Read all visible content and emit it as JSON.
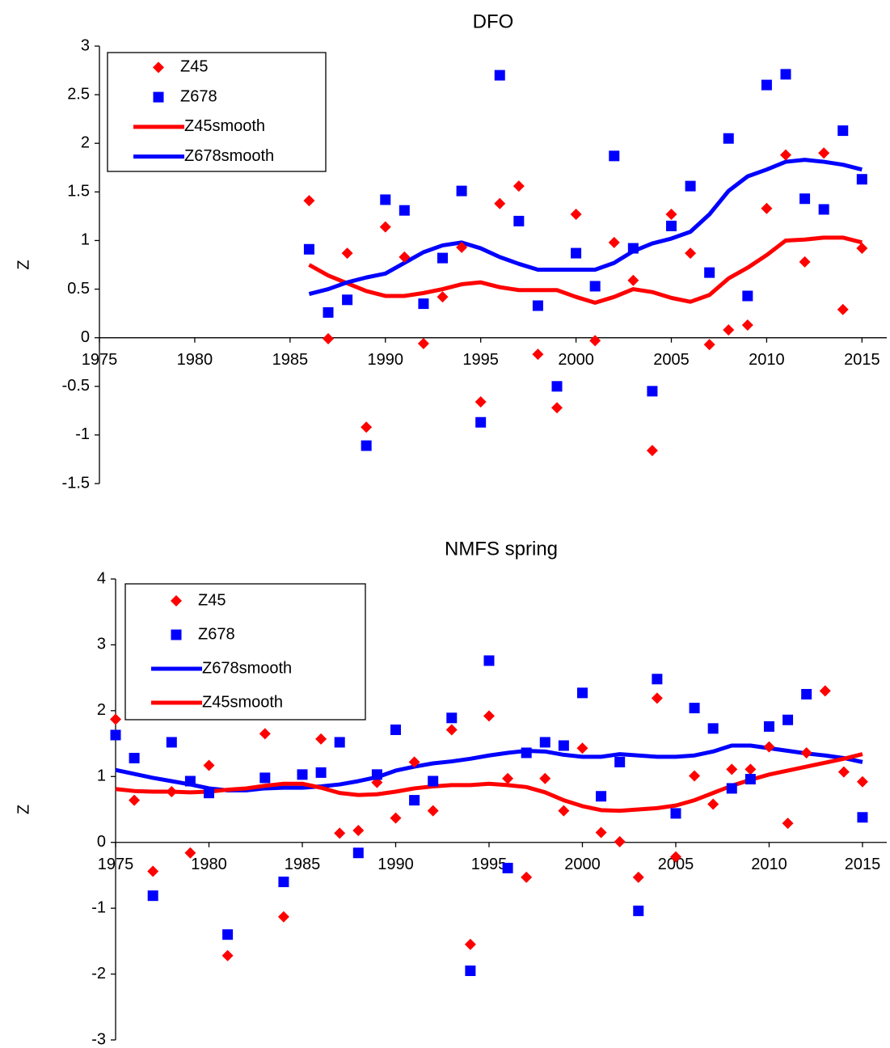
{
  "chart_data": [
    {
      "type": "scatter",
      "title": "DFO",
      "y_label": "Z",
      "legend": "upper left",
      "grid": false,
      "xlim": [
        1975,
        2016.3
      ],
      "xticks": [
        1975,
        1980,
        1985,
        1990,
        1995,
        2000,
        2005,
        2010,
        2015
      ],
      "ylim": [
        -1.5,
        3
      ],
      "yticks": [
        -1.5,
        -1,
        -0.5,
        0,
        0.5,
        1,
        1.5,
        2,
        2.5,
        3
      ],
      "x": [
        1986,
        1987,
        1988,
        1989,
        1990,
        1991,
        1992,
        1993,
        1994,
        1995,
        1996,
        1997,
        1998,
        1999,
        2000,
        2001,
        2002,
        2003,
        2004,
        2005,
        2006,
        2007,
        2008,
        2009,
        2010,
        2011,
        2012,
        2013,
        2014,
        2015
      ],
      "series": [
        {
          "name": "Z45",
          "color": "#ff0000",
          "mode": "markers",
          "marker": "diamond",
          "values": [
            1.41,
            -0.01,
            0.87,
            -0.92,
            1.14,
            0.83,
            -0.06,
            0.42,
            0.93,
            -0.66,
            1.38,
            1.56,
            -0.17,
            -0.72,
            1.27,
            -0.03,
            0.98,
            0.59,
            -1.16,
            1.27,
            0.87,
            -0.07,
            0.08,
            0.13,
            1.33,
            1.88,
            0.78,
            1.9,
            0.29,
            0.92
          ]
        },
        {
          "name": "Z678",
          "color": "#0000ff",
          "mode": "markers",
          "marker": "square",
          "values": [
            0.91,
            0.26,
            0.39,
            -1.11,
            1.42,
            1.31,
            0.35,
            0.82,
            1.51,
            -0.87,
            2.7,
            1.2,
            0.33,
            -0.5,
            0.87,
            0.53,
            1.87,
            0.92,
            -0.55,
            1.15,
            1.56,
            0.67,
            2.05,
            0.43,
            2.6,
            2.71,
            1.43,
            1.32,
            2.13,
            1.63
          ]
        },
        {
          "name": "Z45smooth",
          "color": "#ff0000",
          "mode": "line",
          "values": [
            0.75,
            0.64,
            0.56,
            0.48,
            0.43,
            0.43,
            0.46,
            0.5,
            0.55,
            0.57,
            0.52,
            0.49,
            0.49,
            0.49,
            0.42,
            0.36,
            0.42,
            0.5,
            0.47,
            0.41,
            0.37,
            0.44,
            0.61,
            0.72,
            0.85,
            1.0,
            1.01,
            1.03,
            1.03,
            0.98
          ]
        },
        {
          "name": "Z678smooth",
          "color": "#0000ff",
          "mode": "line",
          "values": [
            0.45,
            0.5,
            0.57,
            0.62,
            0.66,
            0.77,
            0.88,
            0.95,
            0.98,
            0.92,
            0.83,
            0.76,
            0.7,
            0.7,
            0.7,
            0.7,
            0.77,
            0.89,
            0.97,
            1.02,
            1.09,
            1.27,
            1.51,
            1.66,
            1.73,
            1.81,
            1.83,
            1.81,
            1.78,
            1.73
          ]
        }
      ]
    },
    {
      "type": "scatter",
      "title": "NMFS spring",
      "y_label": "Z",
      "legend": "upper left",
      "grid": false,
      "xlim": [
        1975,
        2016.3
      ],
      "xticks": [
        1975,
        1980,
        1985,
        1990,
        1995,
        2000,
        2005,
        2010,
        2015
      ],
      "ylim": [
        -3,
        4
      ],
      "yticks": [
        -3,
        -2,
        -1,
        0,
        1,
        2,
        3,
        4
      ],
      "x": [
        1975,
        1976,
        1977,
        1978,
        1979,
        1980,
        1981,
        1982,
        1983,
        1984,
        1985,
        1986,
        1987,
        1988,
        1989,
        1990,
        1991,
        1992,
        1993,
        1994,
        1995,
        1996,
        1997,
        1998,
        1999,
        2000,
        2001,
        2002,
        2003,
        2004,
        2005,
        2006,
        2007,
        2008,
        2009,
        2010,
        2011,
        2012,
        2013,
        2014,
        2015
      ],
      "series": [
        {
          "name": "Z45",
          "color": "#ff0000",
          "mode": "markers",
          "marker": "diamond",
          "values": [
            1.87,
            0.64,
            -0.44,
            0.77,
            -0.16,
            1.17,
            -1.72,
            null,
            1.65,
            -1.13,
            null,
            1.57,
            0.14,
            0.18,
            0.91,
            0.37,
            1.22,
            0.48,
            1.71,
            -1.55,
            1.92,
            0.97,
            -0.53,
            0.97,
            0.48,
            1.43,
            0.15,
            0.01,
            -0.53,
            2.19,
            -0.22,
            1.01,
            0.58,
            1.11,
            1.11,
            1.45,
            0.29,
            1.36,
            2.3,
            1.07,
            0.92
          ]
        },
        {
          "name": "Z678",
          "color": "#0000ff",
          "mode": "markers",
          "marker": "square",
          "values": [
            1.63,
            1.28,
            -0.81,
            1.52,
            0.93,
            0.75,
            -1.4,
            null,
            0.98,
            -0.6,
            1.03,
            1.06,
            1.52,
            -0.16,
            1.03,
            1.71,
            0.64,
            0.93,
            1.89,
            -1.95,
            2.76,
            -0.39,
            1.36,
            1.52,
            1.47,
            2.27,
            0.7,
            1.22,
            -1.04,
            2.48,
            0.44,
            2.04,
            1.73,
            0.82,
            0.96,
            1.76,
            1.86,
            2.25,
            null,
            null,
            0.38
          ]
        },
        {
          "name": "Z678smooth",
          "color": "#0000ff",
          "mode": "line",
          "values": [
            1.1,
            1.04,
            0.98,
            0.93,
            0.88,
            0.82,
            0.79,
            0.79,
            0.82,
            0.83,
            0.83,
            0.85,
            0.88,
            0.93,
            0.99,
            1.09,
            1.15,
            1.2,
            1.23,
            1.27,
            1.32,
            1.36,
            1.39,
            1.38,
            1.33,
            1.3,
            1.3,
            1.34,
            1.32,
            1.3,
            1.3,
            1.32,
            1.38,
            1.47,
            1.47,
            1.43,
            1.39,
            1.35,
            1.32,
            1.28,
            1.22
          ]
        },
        {
          "name": "Z45smooth",
          "color": "#ff0000",
          "mode": "line",
          "values": [
            0.81,
            0.78,
            0.77,
            0.77,
            0.76,
            0.77,
            0.8,
            0.82,
            0.86,
            0.89,
            0.89,
            0.83,
            0.75,
            0.72,
            0.73,
            0.77,
            0.82,
            0.85,
            0.87,
            0.87,
            0.89,
            0.87,
            0.84,
            0.76,
            0.64,
            0.55,
            0.49,
            0.48,
            0.5,
            0.52,
            0.56,
            0.64,
            0.75,
            0.86,
            0.95,
            1.03,
            1.09,
            1.15,
            1.21,
            1.27,
            1.34
          ]
        }
      ]
    }
  ]
}
